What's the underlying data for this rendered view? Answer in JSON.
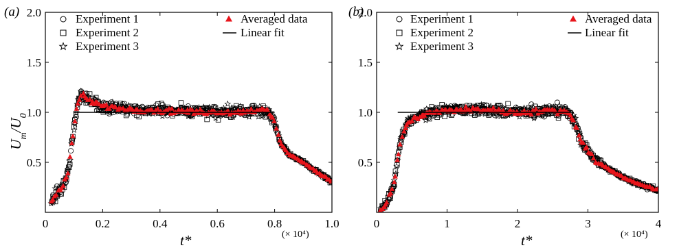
{
  "chart_data": [
    {
      "type": "scatter",
      "panel_label": "(a)",
      "xlabel": "t*",
      "ylabel": "U_m/U_0",
      "x_multiplier_label": "(× 10⁴)",
      "xlim": [
        0,
        1.0
      ],
      "ylim": [
        0,
        2.0
      ],
      "xticks": [
        "0",
        "0.2",
        "0.4",
        "0.6",
        "0.8",
        "1.0"
      ],
      "xtick_values": [
        0,
        0.2,
        0.4,
        0.6,
        0.8,
        1.0
      ],
      "yticks": [
        "0.5",
        "1.0",
        "1.5",
        "2.0"
      ],
      "ytick_values": [
        0.5,
        1.0,
        1.5,
        2.0
      ],
      "grid": false,
      "legend": [
        {
          "label": "Experiment 1",
          "marker": "circle"
        },
        {
          "label": "Experiment 2",
          "marker": "square"
        },
        {
          "label": "Experiment 3",
          "marker": "star"
        },
        {
          "label": "Averaged data",
          "marker": "triangle",
          "color": "#e8141b"
        },
        {
          "label": "Linear fit",
          "marker": "line"
        }
      ],
      "fit_line": {
        "x": [
          0.1,
          0.8
        ],
        "y": [
          1.0,
          1.0
        ]
      },
      "curve_shape": {
        "x": [
          0.02,
          0.04,
          0.06,
          0.08,
          0.09,
          0.1,
          0.11,
          0.12,
          0.13,
          0.15,
          0.2,
          0.3,
          0.4,
          0.5,
          0.6,
          0.7,
          0.75,
          0.78,
          0.8,
          0.82,
          0.85,
          0.9,
          0.95,
          1.0
        ],
        "y": [
          0.1,
          0.2,
          0.25,
          0.4,
          0.65,
          0.85,
          1.05,
          1.15,
          1.17,
          1.12,
          1.06,
          1.03,
          1.02,
          1.01,
          1.0,
          1.01,
          1.03,
          1.0,
          0.9,
          0.7,
          0.58,
          0.5,
          0.4,
          0.31
        ]
      }
    },
    {
      "type": "scatter",
      "panel_label": "(b)",
      "xlabel": "t*",
      "ylabel": "",
      "x_multiplier_label": "(× 10⁴)",
      "xlim": [
        0,
        4
      ],
      "ylim": [
        0,
        2.0
      ],
      "xticks": [
        "0",
        "1",
        "2",
        "3",
        "4"
      ],
      "xtick_values": [
        0,
        1,
        2,
        3,
        4
      ],
      "yticks": [
        "0.5",
        "1.0",
        "1.5",
        "2.0"
      ],
      "ytick_values": [
        0.5,
        1.0,
        1.5,
        2.0
      ],
      "grid": false,
      "legend": [
        {
          "label": "Experiment 1",
          "marker": "circle"
        },
        {
          "label": "Experiment 2",
          "marker": "square"
        },
        {
          "label": "Experiment 3",
          "marker": "star"
        },
        {
          "label": "Averaged data",
          "marker": "triangle",
          "color": "#e8141b"
        },
        {
          "label": "Linear fit",
          "marker": "line"
        }
      ],
      "fit_line": {
        "x": [
          0.3,
          2.8
        ],
        "y": [
          1.0,
          1.0
        ]
      },
      "curve_shape": {
        "x": [
          0.05,
          0.15,
          0.25,
          0.3,
          0.35,
          0.45,
          0.6,
          0.8,
          1.0,
          1.5,
          2.0,
          2.5,
          2.7,
          2.8,
          2.9,
          3.1,
          3.3,
          3.5,
          3.7,
          4.0
        ],
        "y": [
          0.02,
          0.1,
          0.3,
          0.55,
          0.75,
          0.9,
          0.96,
          1.0,
          1.02,
          1.03,
          1.0,
          1.02,
          1.01,
          0.92,
          0.72,
          0.52,
          0.43,
          0.35,
          0.29,
          0.22
        ]
      }
    }
  ]
}
